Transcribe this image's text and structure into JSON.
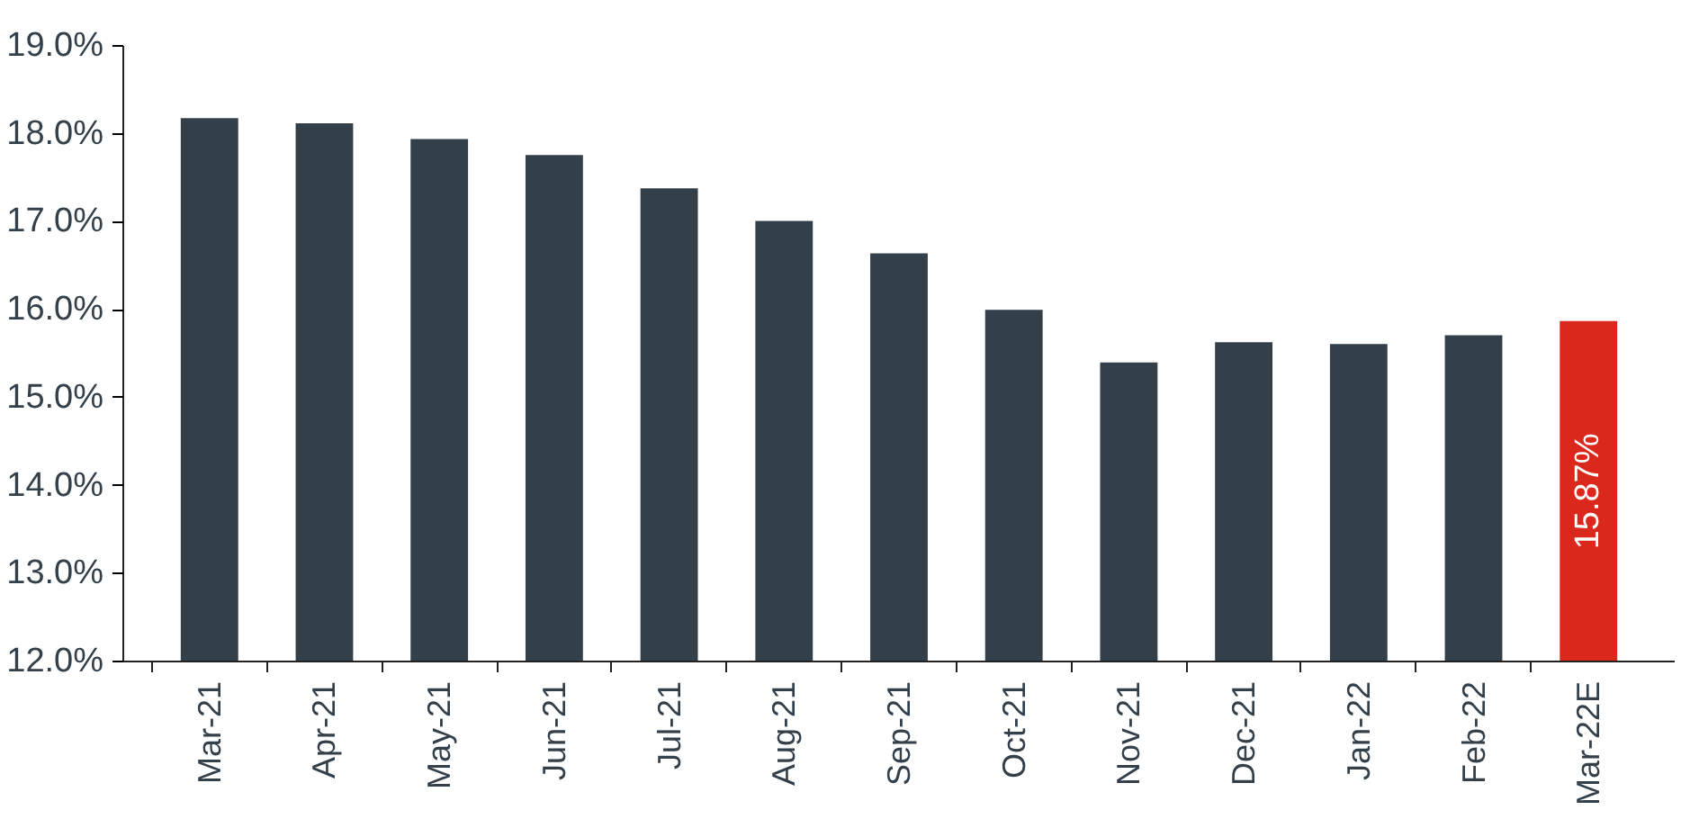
{
  "chart_data": {
    "type": "bar",
    "categories": [
      "Mar-21",
      "Apr-21",
      "May-21",
      "Jun-21",
      "Jul-21",
      "Aug-21",
      "Sep-21",
      "Oct-21",
      "Nov-21",
      "Dec-21",
      "Jan-22",
      "Feb-22",
      "Mar-22E"
    ],
    "values": [
      18.18,
      18.12,
      17.94,
      17.76,
      17.38,
      17.01,
      16.64,
      16.0,
      15.4,
      15.63,
      15.61,
      15.71,
      15.87
    ],
    "colors": [
      "#333f49",
      "#333f49",
      "#333f49",
      "#333f49",
      "#333f49",
      "#333f49",
      "#333f49",
      "#333f49",
      "#333f49",
      "#333f49",
      "#333f49",
      "#333f49",
      "#da291c"
    ],
    "value_labels": [
      null,
      null,
      null,
      null,
      null,
      null,
      null,
      null,
      null,
      null,
      null,
      null,
      "15.87%"
    ],
    "ylim": [
      12,
      19
    ],
    "yticks": [
      {
        "value": 12,
        "label": "12.0%"
      },
      {
        "value": 13,
        "label": "13.0%"
      },
      {
        "value": 14,
        "label": "14.0%"
      },
      {
        "value": 15,
        "label": "15.0%"
      },
      {
        "value": 16,
        "label": "16.0%"
      },
      {
        "value": 17,
        "label": "17.0%"
      },
      {
        "value": 18,
        "label": "18.0%"
      },
      {
        "value": 19,
        "label": "19.0%"
      }
    ],
    "grid": false
  }
}
